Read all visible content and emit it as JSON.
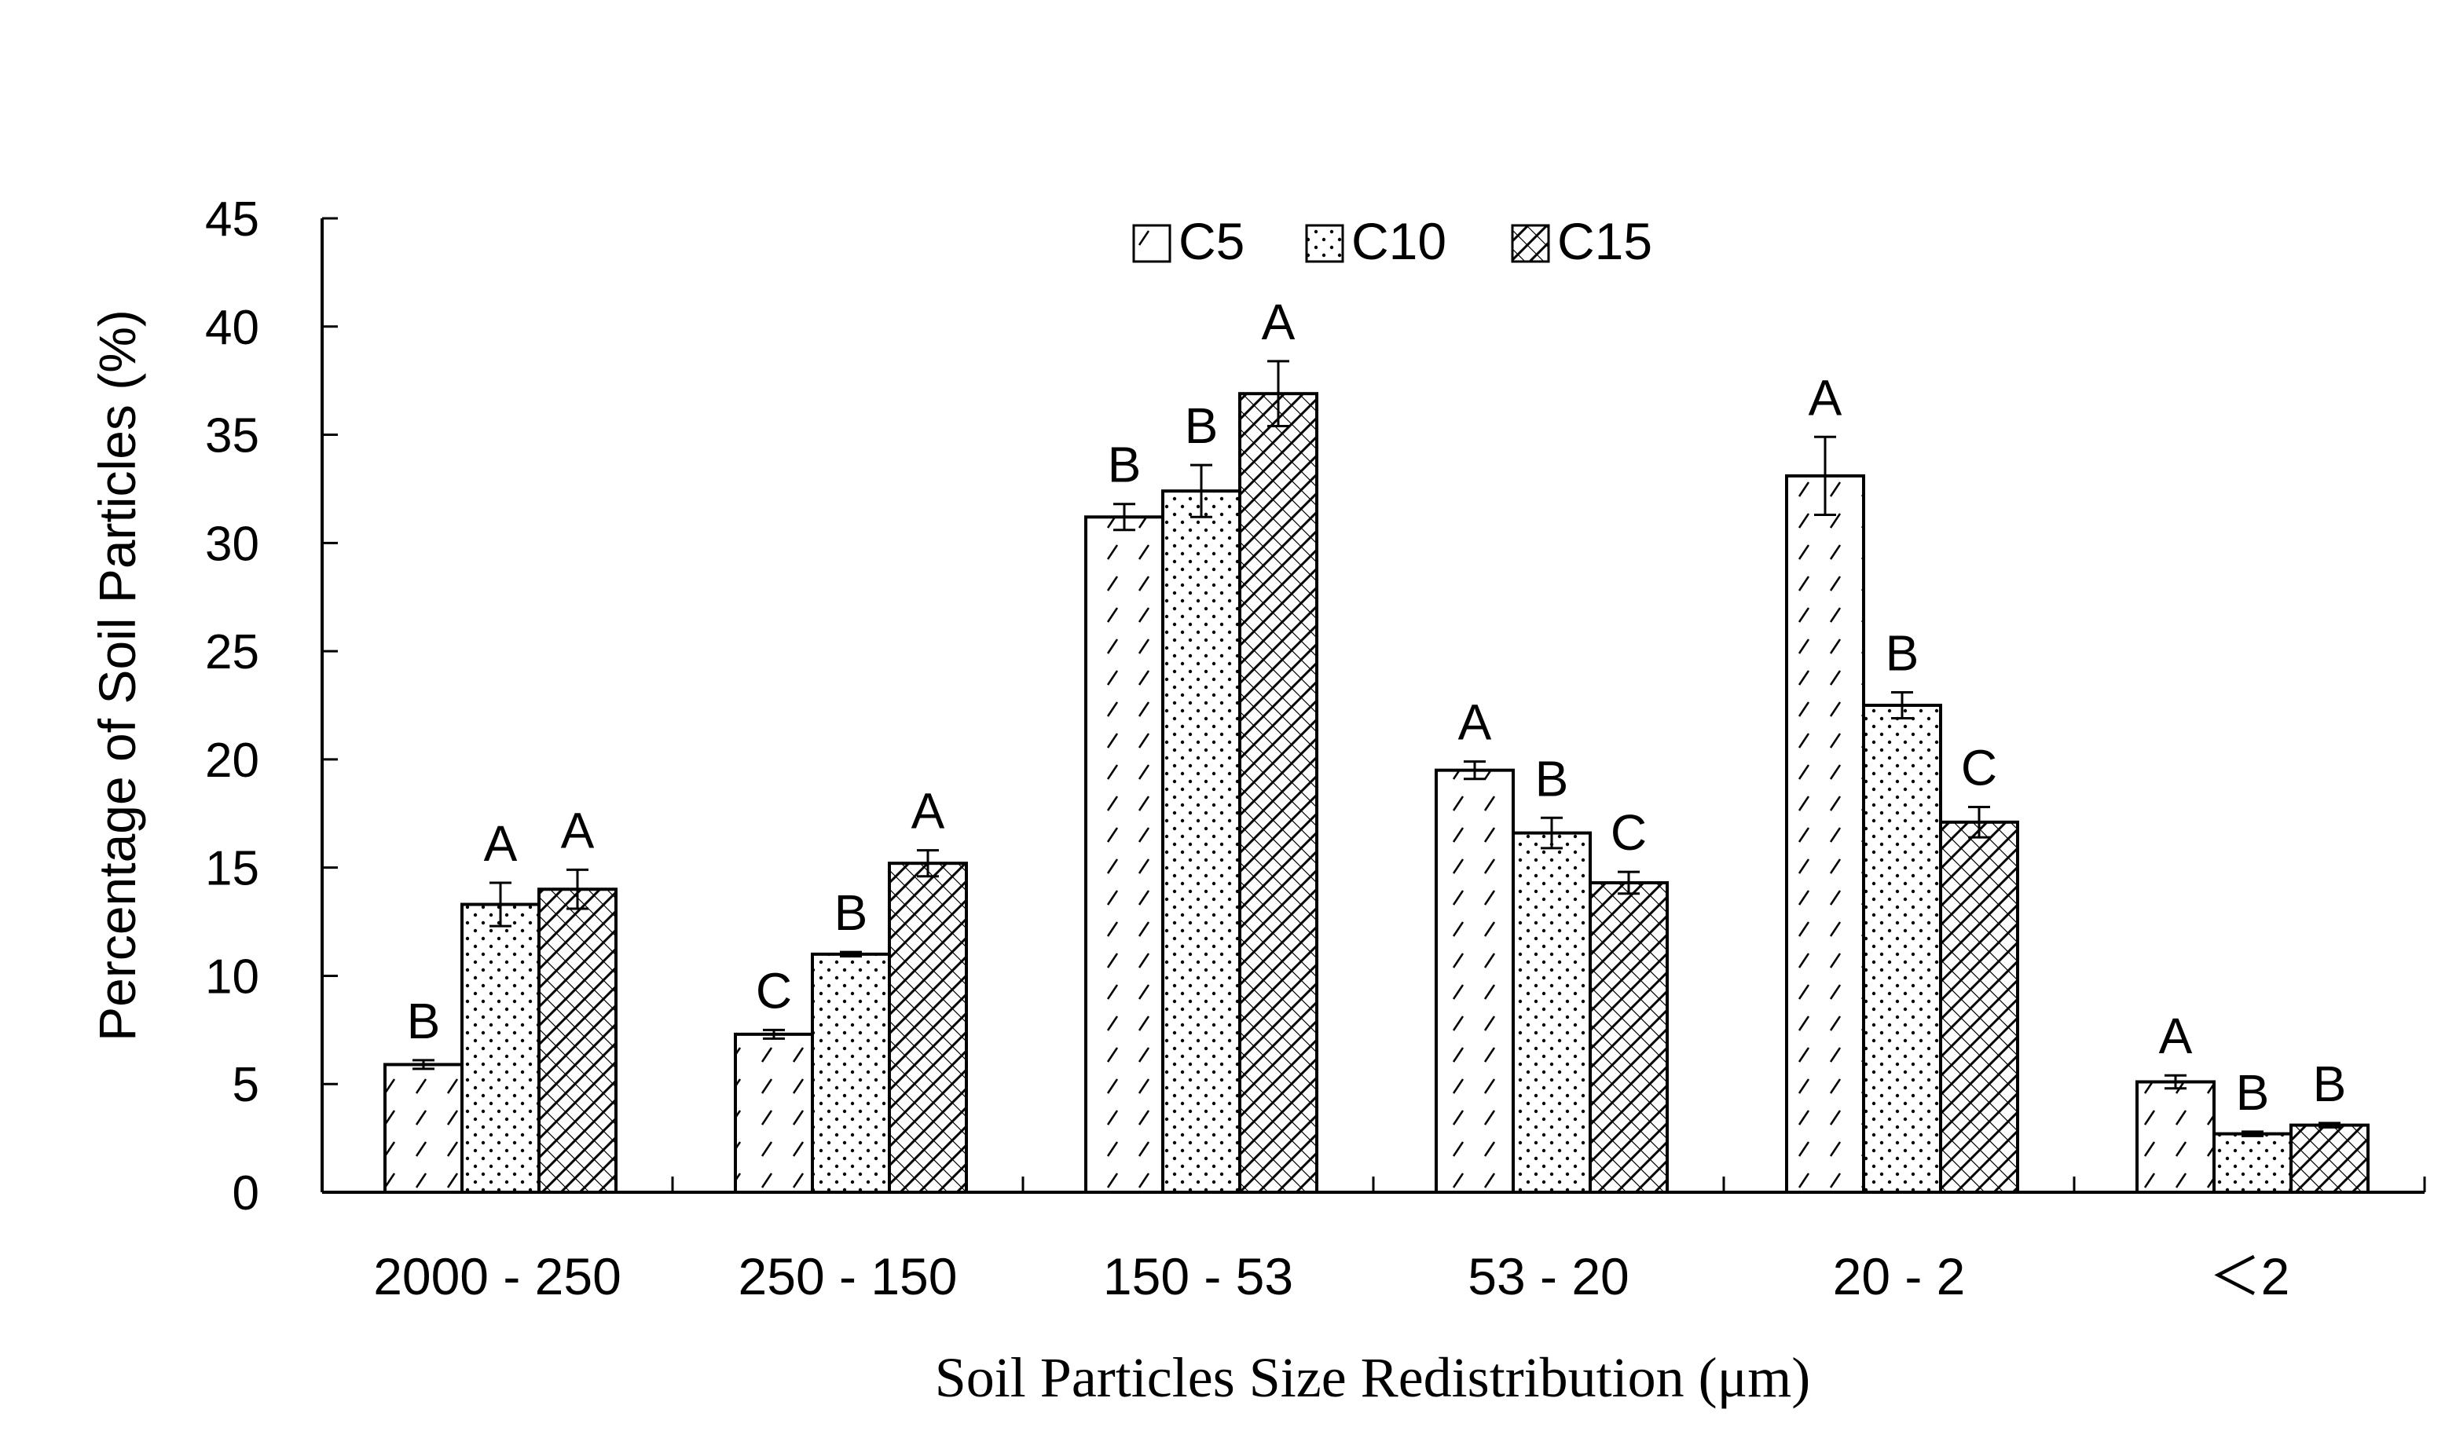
{
  "chart_data": {
    "type": "bar",
    "title": "",
    "xlabel": "Soil Particles Size Redistribution (μm)",
    "ylabel": "Percentage of Soil Particles (%)",
    "ylim": [
      0,
      45
    ],
    "yticks": [
      0,
      5,
      10,
      15,
      20,
      25,
      30,
      35,
      40,
      45
    ],
    "categories": [
      "2000 - 250",
      "250 - 150",
      "150 - 53",
      "53 - 20",
      "20 - 2",
      "＜2"
    ],
    "legend_position": "top-center",
    "series": [
      {
        "name": "C5",
        "pattern": "sparse-diagonal",
        "values": [
          5.9,
          7.3,
          31.2,
          19.5,
          33.1,
          5.1
        ],
        "errors": [
          0.2,
          0.2,
          0.6,
          0.4,
          1.8,
          0.3
        ],
        "significance": [
          "B",
          "C",
          "B",
          "A",
          "A",
          "A"
        ]
      },
      {
        "name": "C10",
        "pattern": "dots",
        "values": [
          13.3,
          11.0,
          32.4,
          16.6,
          22.5,
          2.7
        ],
        "errors": [
          1.0,
          0.1,
          1.2,
          0.7,
          0.6,
          0.1
        ],
        "significance": [
          "A",
          "B",
          "B",
          "B",
          "B",
          "B"
        ]
      },
      {
        "name": "C15",
        "pattern": "crosshatch",
        "values": [
          14.0,
          15.2,
          36.9,
          14.3,
          17.1,
          3.1
        ],
        "errors": [
          0.9,
          0.6,
          1.5,
          0.5,
          0.7,
          0.1
        ],
        "significance": [
          "A",
          "A",
          "A",
          "C",
          "C",
          "B"
        ]
      }
    ]
  }
}
